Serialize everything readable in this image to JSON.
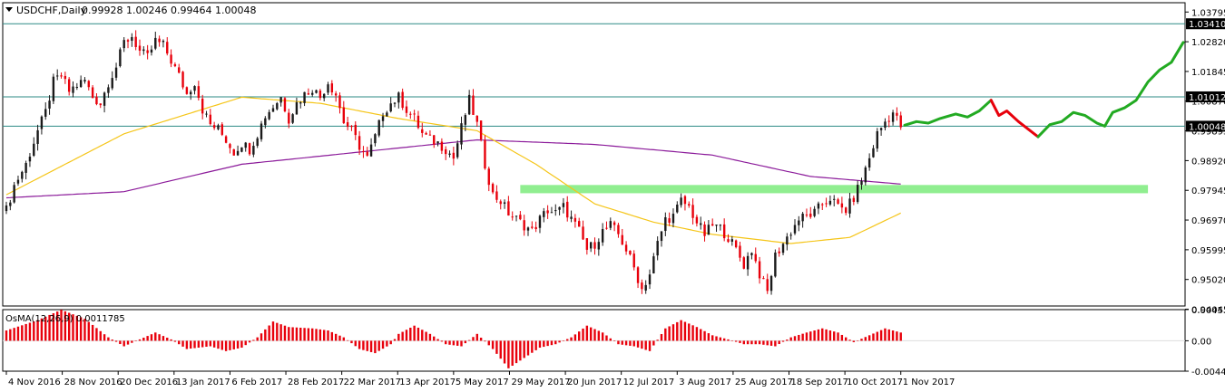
{
  "header": {
    "symbol": "USDCHF,Daily",
    "ohlc": "0.99928 1.00246 0.99464 1.00048"
  },
  "colors": {
    "bull": "#1a1a1a",
    "bear": "#e8000b",
    "ma_fast": "#f5c518",
    "ma_slow": "#8b1a9a",
    "hline": "#2e8b86",
    "zone": "#90ee90",
    "proj_up": "#22aa22",
    "proj_down": "#e8000b",
    "osma": "#e8000b"
  },
  "chart_data": [
    {
      "type": "candlestick",
      "title": "USDCHF,Daily 0.99928 1.00246 0.99464 1.00048",
      "ylim": [
        0.9415,
        1.041
      ],
      "y_ticks": [
        "1.03795",
        "1.02820",
        "1.01845",
        "1.00870",
        "0.99895",
        "0.98920",
        "0.97945",
        "0.96970",
        "0.95995",
        "0.95020",
        "0.94045"
      ],
      "y_tick_values": [
        1.03795,
        1.0282,
        1.01845,
        1.0087,
        0.99895,
        0.9892,
        0.97945,
        0.9697,
        0.95995,
        0.9502,
        0.94045
      ],
      "x_ticks": [
        "4 Nov 2016",
        "28 Nov 2016",
        "20 Dec 2016",
        "13 Jan 2017",
        "6 Feb 2017",
        "28 Feb 2017",
        "22 Mar 2017",
        "13 Apr 2017",
        "5 May 2017",
        "29 May 2017",
        "20 Jun 2017",
        "12 Jul 2017",
        "3 Aug 2017",
        "25 Aug 2017",
        "18 Sep 2017",
        "10 Oct 2017",
        "1 Nov 2017"
      ],
      "horizontal_levels": [
        1.0341,
        1.01012,
        1.00048
      ],
      "level_labels": [
        "1.03410",
        "1.01012",
        "1.00048"
      ],
      "support_zone": [
        0.9785,
        0.9812
      ],
      "price_path": [
        [
          0,
          0.973
        ],
        [
          2,
          0.981
        ],
        [
          5,
          0.988
        ],
        [
          8,
          0.999
        ],
        [
          10,
          1.005
        ],
        [
          12,
          1.015
        ],
        [
          14,
          1.017
        ],
        [
          16,
          1.012
        ],
        [
          18,
          1.014
        ],
        [
          20,
          1.0155
        ],
        [
          22,
          1.01
        ],
        [
          24,
          1.008
        ],
        [
          26,
          1.015
        ],
        [
          28,
          1.02
        ],
        [
          30,
          1.028
        ],
        [
          32,
          1.03
        ],
        [
          34,
          1.025
        ],
        [
          36,
          1.023
        ],
        [
          38,
          1.0285
        ],
        [
          40,
          1.027
        ],
        [
          42,
          1.022
        ],
        [
          44,
          1.017
        ],
        [
          46,
          1.011
        ],
        [
          48,
          1.015
        ],
        [
          50,
          1.006
        ],
        [
          52,
          1.001
        ],
        [
          54,
          0.9995
        ],
        [
          56,
          0.996
        ],
        [
          58,
          0.992
        ],
        [
          60,
          0.995
        ],
        [
          62,
          0.993
        ],
        [
          64,
          0.998
        ],
        [
          66,
          1.004
        ],
        [
          68,
          1.007
        ],
        [
          70,
          1.01
        ],
        [
          72,
          1.003
        ],
        [
          74,
          1.008
        ],
        [
          76,
          1.011
        ],
        [
          78,
          1.013
        ],
        [
          80,
          1.01
        ],
        [
          82,
          1.015
        ],
        [
          84,
          1.011
        ],
        [
          86,
          1.002
        ],
        [
          88,
          0.999
        ],
        [
          90,
          0.994
        ],
        [
          92,
          0.99
        ],
        [
          94,
          0.997
        ],
        [
          96,
          1.005
        ],
        [
          98,
          1.008
        ],
        [
          100,
          1.01
        ],
        [
          102,
          1.006
        ],
        [
          104,
          1.003
        ],
        [
          106,
          0.998
        ],
        [
          108,
          0.996
        ],
        [
          110,
          0.995
        ],
        [
          112,
          0.993
        ],
        [
          114,
          0.99
        ],
        [
          116,
          1.0
        ],
        [
          118,
          1.009
        ],
        [
          120,
          1.001
        ],
        [
          122,
          0.988
        ],
        [
          124,
          0.978
        ],
        [
          126,
          0.976
        ],
        [
          128,
          0.972
        ],
        [
          130,
          0.97
        ],
        [
          132,
          0.968
        ],
        [
          134,
          0.966
        ],
        [
          136,
          0.97
        ],
        [
          138,
          0.973
        ],
        [
          140,
          0.972
        ],
        [
          142,
          0.974
        ],
        [
          144,
          0.97
        ],
        [
          146,
          0.966
        ],
        [
          148,
          0.96
        ],
        [
          150,
          0.962
        ],
        [
          152,
          0.966
        ],
        [
          154,
          0.968
        ],
        [
          156,
          0.965
        ],
        [
          158,
          0.96
        ],
        [
          160,
          0.954
        ],
        [
          162,
          0.947
        ],
        [
          164,
          0.952
        ],
        [
          166,
          0.962
        ],
        [
          168,
          0.97
        ],
        [
          170,
          0.971
        ],
        [
          172,
          0.976
        ],
        [
          174,
          0.974
        ],
        [
          176,
          0.969
        ],
        [
          178,
          0.965
        ],
        [
          180,
          0.968
        ],
        [
          182,
          0.967
        ],
        [
          184,
          0.964
        ],
        [
          186,
          0.96
        ],
        [
          188,
          0.955
        ],
        [
          190,
          0.96
        ],
        [
          192,
          0.952
        ],
        [
          194,
          0.946
        ],
        [
          196,
          0.958
        ],
        [
          198,
          0.962
        ],
        [
          200,
          0.966
        ],
        [
          202,
          0.97
        ],
        [
          204,
          0.971
        ],
        [
          206,
          0.972
        ],
        [
          208,
          0.975
        ],
        [
          210,
          0.977
        ],
        [
          212,
          0.974
        ],
        [
          214,
          0.973
        ],
        [
          216,
          0.977
        ],
        [
          218,
          0.983
        ],
        [
          220,
          0.99
        ],
        [
          222,
          0.998
        ],
        [
          224,
          1.002
        ],
        [
          226,
          1.005
        ],
        [
          228,
          1.0005
        ]
      ],
      "ma_fast_path": [
        [
          0,
          0.978
        ],
        [
          30,
          0.998
        ],
        [
          60,
          1.01
        ],
        [
          80,
          1.008
        ],
        [
          100,
          1.003
        ],
        [
          120,
          0.999
        ],
        [
          135,
          0.988
        ],
        [
          150,
          0.975
        ],
        [
          165,
          0.969
        ],
        [
          180,
          0.965
        ],
        [
          200,
          0.962
        ],
        [
          215,
          0.964
        ],
        [
          228,
          0.972
        ]
      ],
      "ma_slow_path": [
        [
          0,
          0.977
        ],
        [
          30,
          0.979
        ],
        [
          60,
          0.988
        ],
        [
          90,
          0.992
        ],
        [
          120,
          0.996
        ],
        [
          150,
          0.9945
        ],
        [
          180,
          0.991
        ],
        [
          205,
          0.984
        ],
        [
          228,
          0.9815
        ]
      ],
      "projection": [
        {
          "trend": "up",
          "points": [
            [
              229,
              1.0008
            ],
            [
              232,
              1.002
            ],
            [
              235,
              1.0015
            ],
            [
              238,
              1.003
            ],
            [
              242,
              1.0045
            ],
            [
              245,
              1.0035
            ],
            [
              248,
              1.0055
            ],
            [
              251,
              1.009
            ]
          ]
        },
        {
          "trend": "down",
          "points": [
            [
              251,
              1.009
            ],
            [
              253,
              1.004
            ],
            [
              255,
              1.0055
            ],
            [
              258,
              1.002
            ],
            [
              261,
              0.999
            ],
            [
              263,
              0.997
            ]
          ]
        },
        {
          "trend": "up",
          "points": [
            [
              263,
              0.997
            ],
            [
              266,
              1.001
            ],
            [
              269,
              1.002
            ],
            [
              272,
              1.005
            ],
            [
              275,
              1.004
            ],
            [
              278,
              1.0015
            ],
            [
              280,
              1.0005
            ],
            [
              282,
              1.005
            ],
            [
              285,
              1.0065
            ],
            [
              288,
              1.009
            ],
            [
              291,
              1.015
            ],
            [
              294,
              1.019
            ],
            [
              297,
              1.0215
            ],
            [
              300,
              1.028
            ]
          ]
        }
      ]
    },
    {
      "type": "bar",
      "title": "OsMA(12,26,9) 0.0011785",
      "ylim": [
        -0.00442,
        0.00453
      ],
      "y_ticks": [
        "0.004538",
        "0.00",
        "-0.004420"
      ],
      "y_tick_values": [
        0.004538,
        0.0,
        -0.00442
      ],
      "osma_path": [
        [
          0,
          0.0015
        ],
        [
          8,
          0.003
        ],
        [
          14,
          0.0045
        ],
        [
          20,
          0.0032
        ],
        [
          26,
          0.0005
        ],
        [
          30,
          -0.0008
        ],
        [
          34,
          0.0002
        ],
        [
          38,
          0.0012
        ],
        [
          42,
          0.0002
        ],
        [
          46,
          -0.0012
        ],
        [
          52,
          -0.0008
        ],
        [
          56,
          -0.0015
        ],
        [
          60,
          -0.001
        ],
        [
          64,
          0.0005
        ],
        [
          68,
          0.0028
        ],
        [
          72,
          0.002
        ],
        [
          78,
          0.0018
        ],
        [
          82,
          0.0015
        ],
        [
          86,
          0.0005
        ],
        [
          90,
          -0.0012
        ],
        [
          94,
          -0.0018
        ],
        [
          98,
          -0.0005
        ],
        [
          100,
          0.001
        ],
        [
          104,
          0.0022
        ],
        [
          108,
          0.001
        ],
        [
          112,
          -0.0005
        ],
        [
          116,
          -0.0008
        ],
        [
          120,
          0.001
        ],
        [
          124,
          -0.0012
        ],
        [
          128,
          -0.004
        ],
        [
          132,
          -0.0025
        ],
        [
          136,
          -0.001
        ],
        [
          140,
          -0.0005
        ],
        [
          144,
          0.0005
        ],
        [
          148,
          0.0022
        ],
        [
          152,
          0.0012
        ],
        [
          156,
          -0.0005
        ],
        [
          160,
          -0.0008
        ],
        [
          164,
          -0.0015
        ],
        [
          168,
          0.0018
        ],
        [
          172,
          0.003
        ],
        [
          176,
          0.002
        ],
        [
          180,
          0.0008
        ],
        [
          184,
          0.0002
        ],
        [
          188,
          -0.0005
        ],
        [
          192,
          -0.0005
        ],
        [
          196,
          -0.0008
        ],
        [
          200,
          0.0005
        ],
        [
          204,
          0.0012
        ],
        [
          208,
          0.0018
        ],
        [
          212,
          0.0012
        ],
        [
          216,
          -0.0002
        ],
        [
          220,
          0.0008
        ],
        [
          224,
          0.0018
        ],
        [
          228,
          0.0012
        ]
      ]
    }
  ]
}
